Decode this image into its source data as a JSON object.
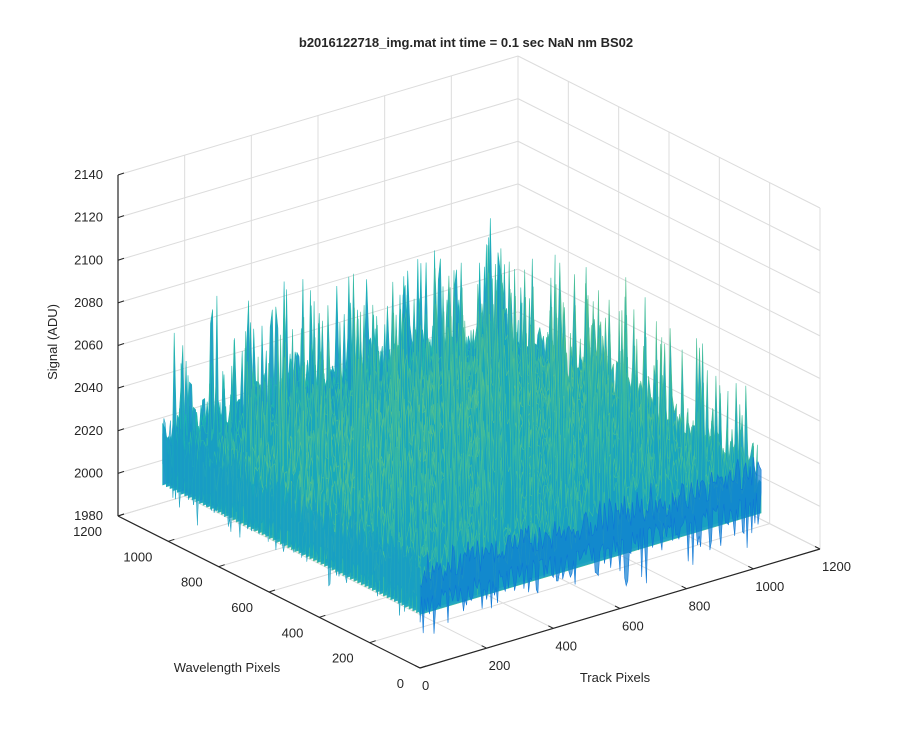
{
  "chart_data": {
    "type": "surface",
    "title": "b2016122718_img.mat int time = 0.1 sec  NaN nm BS02",
    "xlabel": "Track Pixels",
    "ylabel": "Wavelength Pixels",
    "zlabel": "Signal (ADU)",
    "x_ticks": [
      "0",
      "200",
      "400",
      "600",
      "800",
      "1000",
      "1200"
    ],
    "y_ticks": [
      "0",
      "200",
      "400",
      "600",
      "800",
      "1000",
      "1200"
    ],
    "z_ticks": [
      "1980",
      "2000",
      "2020",
      "2040",
      "2060",
      "2080",
      "2100",
      "2120",
      "2140"
    ],
    "xlim": [
      0,
      1200
    ],
    "ylim": [
      0,
      1200
    ],
    "zlim": [
      1980,
      2140
    ],
    "data_extent": {
      "x": [
        1,
        1024
      ],
      "y": [
        1,
        1024
      ]
    },
    "signal_level": {
      "mean": 2030,
      "min": 1990,
      "max": 2115
    },
    "colormap": "parula",
    "grid": true,
    "colors": {
      "low": "#0b6fd9",
      "mid": "#18b4b4",
      "high": "#d7c95a",
      "grid": "#dcdcdc",
      "axis": "#262626"
    }
  }
}
